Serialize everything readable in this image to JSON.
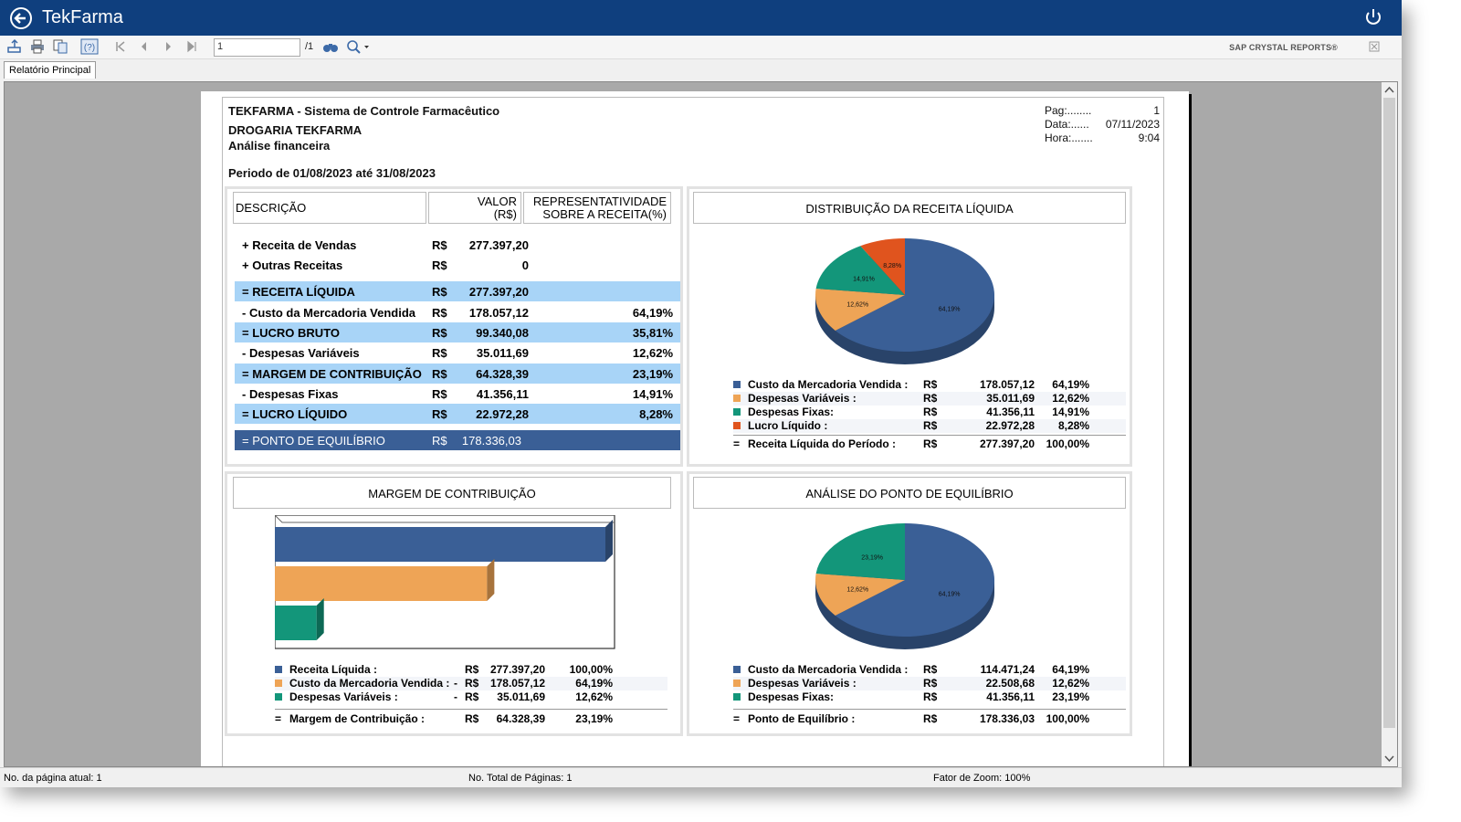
{
  "app": {
    "title": "TekFarma"
  },
  "toolbar": {
    "page_value": "1",
    "page_total": "/1",
    "brand": "SAP CRYSTAL REPORTS®"
  },
  "tabs": [
    {
      "label": "Relatório Principal"
    }
  ],
  "report": {
    "system_title": "TEKFARMA - Sistema de Controle Farmacêutico",
    "store": "DROGARIA TEKFARMA",
    "subtitle": "Análise financeira",
    "period": "Periodo de 01/08/2023 até 31/08/2023",
    "meta": {
      "pag_label": "Pag:........",
      "pag_value": "1",
      "data_label": "Data:......",
      "data_value": "07/11/2023",
      "hora_label": "Hora:.......",
      "hora_value": "9:04"
    },
    "table": {
      "col_desc": "DESCRIÇÃO",
      "col_valor": "VALOR\n(R$)",
      "col_rep": "REPRESENTATIVIDADE\nSOBRE A RECEITA(%)",
      "rows": [
        {
          "desc": "+ Receita de Vendas",
          "cur": "R$",
          "value": "277.397,20",
          "pct": "",
          "style": "plain"
        },
        {
          "desc": "+ Outras Receitas",
          "cur": "R$",
          "value": "0",
          "pct": "",
          "style": "plain"
        },
        {
          "desc": "= RECEITA LÍQUIDA",
          "cur": "R$",
          "value": "277.397,20",
          "pct": "",
          "style": "hl"
        },
        {
          "desc": "- Custo da Mercadoria Vendida",
          "cur": "R$",
          "value": "178.057,12",
          "pct": "64,19%",
          "style": "plain"
        },
        {
          "desc": "= LUCRO BRUTO",
          "cur": "R$",
          "value": "99.340,08",
          "pct": "35,81%",
          "style": "hl"
        },
        {
          "desc": "- Despesas Variáveis",
          "cur": "R$",
          "value": "35.011,69",
          "pct": "12,62%",
          "style": "plain"
        },
        {
          "desc": "= MARGEM DE CONTRIBUIÇÃO",
          "cur": "R$",
          "value": "64.328,39",
          "pct": "23,19%",
          "style": "hl"
        },
        {
          "desc": "- Despesas Fixas",
          "cur": "R$",
          "value": "41.356,11",
          "pct": "14,91%",
          "style": "plain"
        },
        {
          "desc": "= LUCRO LÍQUIDO",
          "cur": "R$",
          "value": "22.972,28",
          "pct": "8,28%",
          "style": "hl"
        },
        {
          "desc": "= PONTO DE EQUILÍBRIO",
          "cur": "R$",
          "value": "178.336,03",
          "pct": "",
          "style": "dark"
        }
      ]
    },
    "pie1": {
      "title": "DISTRIBUIÇÃO DA RECEITA LÍQUIDA",
      "legend": [
        {
          "name": "Custo da Mercadoria Vendida :",
          "cur": "R$",
          "value": "178.057,12",
          "pct": "64,19%",
          "color": "#3a5f96"
        },
        {
          "name": "Despesas Variáveis :",
          "cur": "R$",
          "value": "35.011,69",
          "pct": "12,62%",
          "color": "#eea456"
        },
        {
          "name": "Despesas Fixas:",
          "cur": "R$",
          "value": "41.356,11",
          "pct": "14,91%",
          "color": "#13967a"
        },
        {
          "name": "Lucro Líquido :",
          "cur": "R$",
          "value": "22.972,28",
          "pct": "8,28%",
          "color": "#e0541e"
        }
      ],
      "total": {
        "sign": "=",
        "name": "Receita Líquida do Período :",
        "cur": "R$",
        "value": "277.397,20",
        "pct": "100,00%"
      }
    },
    "bars": {
      "title": "MARGEM DE CONTRIBUIÇÃO",
      "legend": [
        {
          "name": "Receita Líquida :",
          "sign": "",
          "cur": "R$",
          "value": "277.397,20",
          "pct": "100,00%",
          "color": "#3a5f96"
        },
        {
          "name": "Custo da Mercadoria Vendida :",
          "sign": "-",
          "cur": "R$",
          "value": "178.057,12",
          "pct": "64,19%",
          "color": "#eea456"
        },
        {
          "name": "Despesas Variáveis :",
          "sign": "-",
          "cur": "R$",
          "value": "35.011,69",
          "pct": "12,62%",
          "color": "#13967a"
        }
      ],
      "total": {
        "sign": "=",
        "name": "Margem de Contribuição :",
        "cur": "R$",
        "value": "64.328,39",
        "pct": "23,19%"
      }
    },
    "pie2": {
      "title": "ANÁLISE DO PONTO DE EQUILÍBRIO",
      "legend": [
        {
          "name": "Custo da Mercadoria Vendida :",
          "cur": "R$",
          "value": "114.471,24",
          "pct": "64,19%",
          "color": "#3a5f96"
        },
        {
          "name": "Despesas Variáveis :",
          "cur": "R$",
          "value": "22.508,68",
          "pct": "12,62%",
          "color": "#eea456"
        },
        {
          "name": "Despesas Fixas:",
          "cur": "R$",
          "value": "41.356,11",
          "pct": "23,19%",
          "color": "#13967a"
        }
      ],
      "total": {
        "sign": "=",
        "name": "Ponto de Equilíbrio :",
        "cur": "R$",
        "value": "178.336,03",
        "pct": "100,00%"
      }
    }
  },
  "chart_data": [
    {
      "type": "pie",
      "title": "DISTRIBUIÇÃO DA RECEITA LÍQUIDA",
      "categories": [
        "Custo da Mercadoria Vendida",
        "Despesas Variáveis",
        "Despesas Fixas",
        "Lucro Líquido"
      ],
      "values": [
        64.19,
        12.62,
        14.91,
        8.28
      ],
      "labels": [
        "64,19%",
        "12,62%",
        "14,91%",
        "8,28%"
      ],
      "colors": [
        "#3a5f96",
        "#eea456",
        "#13967a",
        "#e0541e"
      ]
    },
    {
      "type": "bar",
      "title": "MARGEM DE CONTRIBUIÇÃO",
      "orientation": "horizontal",
      "categories": [
        "Receita Líquida",
        "Custo da Mercadoria Vendida",
        "Despesas Variáveis"
      ],
      "values": [
        277397.2,
        178057.12,
        35011.69
      ],
      "xlim": [
        0,
        277397.2
      ],
      "colors": [
        "#3a5f96",
        "#eea456",
        "#13967a"
      ]
    },
    {
      "type": "pie",
      "title": "ANÁLISE DO PONTO DE EQUILÍBRIO",
      "categories": [
        "Custo da Mercadoria Vendida",
        "Despesas Variáveis",
        "Despesas Fixas"
      ],
      "values": [
        64.19,
        12.62,
        23.19
      ],
      "labels": [
        "64,19%",
        "12,62%",
        "23,19%"
      ],
      "colors": [
        "#3a5f96",
        "#eea456",
        "#13967a"
      ]
    }
  ],
  "status": {
    "page_current": "No. da página atual: 1",
    "page_total": "No. Total de Páginas: 1",
    "zoom": "Fator de Zoom: 100%"
  }
}
